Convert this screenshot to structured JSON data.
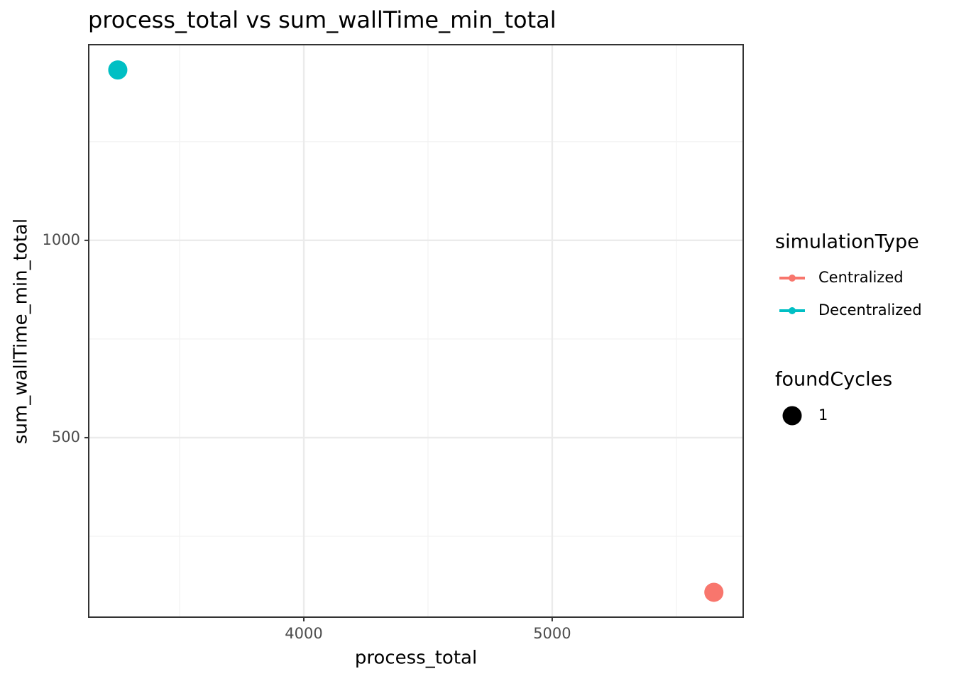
{
  "chart_data": {
    "type": "scatter",
    "title": "process_total  vs  sum_wallTime_min_total",
    "x_label": "process_total",
    "y_label": "sum_wallTime_min_total",
    "xlim": [
      3134,
      5769
    ],
    "xticks": [
      4000,
      5000
    ],
    "ylim": [
      45,
      1496
    ],
    "yticks": [
      500,
      1000
    ],
    "grid": true,
    "legend_title": "simulationType",
    "series": [
      {
        "name": "Centralized",
        "color": "#F8766D",
        "x": [
          5651
        ],
        "values": [
          108
        ]
      },
      {
        "name": "Decentralized",
        "color": "#00BFC4",
        "x": [
          3251
        ],
        "values": [
          1432
        ]
      }
    ],
    "size_legend": {
      "title": "foundCycles",
      "values": [
        1
      ]
    },
    "legend_position": "right"
  }
}
